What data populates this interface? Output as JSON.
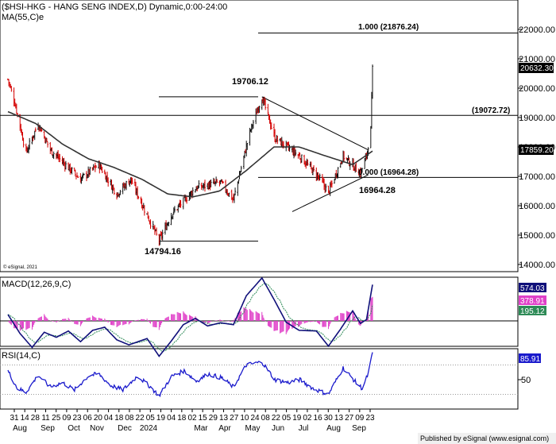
{
  "header": {
    "title": "($HSI-HKG - HANG SENG INDEX,D) Dynamic,0:00-24:00",
    "ma_label": "MA(55,C)e"
  },
  "copyright": "© eSignal, 2021",
  "footer": "Published by eSignal (www.esignal.com)",
  "colors": {
    "up": "#111111",
    "down": "#d40000",
    "ma": "#333333",
    "macd_line": "#10107a",
    "macd_signal": "#2e8b57",
    "hist": "#e040c8",
    "rsi": "#1a1acc",
    "badge_bg": "#000000",
    "badge_blue": "#1a1acc",
    "badge_magenta": "#e040c8",
    "badge_green": "#2e8b57"
  },
  "chart_data": [
    {
      "type": "candlestick",
      "panel": "price",
      "title": "HANG SENG INDEX",
      "ylim": [
        13300,
        22800
      ],
      "y_ticks": [
        14000,
        15000,
        16000,
        17000,
        18000,
        19000,
        20000,
        21000,
        22000
      ],
      "y_tick_labels": [
        "14000.00",
        "15000.00",
        "16000.00",
        "17000.00",
        "18000.00",
        "19000.00",
        "20000.00",
        "21000.00",
        "22000.00"
      ],
      "last_price": "20632.30",
      "ma55_value": "17859.20",
      "key_points": [
        {
          "date": "2023-07-31",
          "value": 20300
        },
        {
          "date": "2023-08-08",
          "value": 19500
        },
        {
          "date": "2023-08-21",
          "value": 17800
        },
        {
          "date": "2023-09-04",
          "value": 18800
        },
        {
          "date": "2023-09-18",
          "value": 17900
        },
        {
          "date": "2023-10-02",
          "value": 17500
        },
        {
          "date": "2023-10-23",
          "value": 16900
        },
        {
          "date": "2023-11-13",
          "value": 17400
        },
        {
          "date": "2023-12-04",
          "value": 16400
        },
        {
          "date": "2023-12-20",
          "value": 16900
        },
        {
          "date": "2024-01-22",
          "value": 14794.16
        },
        {
          "date": "2024-02-05",
          "value": 15700
        },
        {
          "date": "2024-03-04",
          "value": 16600
        },
        {
          "date": "2024-04-02",
          "value": 16800
        },
        {
          "date": "2024-04-17",
          "value": 16200
        },
        {
          "date": "2024-05-06",
          "value": 18500
        },
        {
          "date": "2024-05-20",
          "value": 19706.12
        },
        {
          "date": "2024-06-04",
          "value": 18300
        },
        {
          "date": "2024-07-02",
          "value": 17700
        },
        {
          "date": "2024-07-24",
          "value": 17000
        },
        {
          "date": "2024-08-05",
          "value": 16441
        },
        {
          "date": "2024-08-22",
          "value": 17700
        },
        {
          "date": "2024-09-11",
          "value": 17100
        },
        {
          "date": "2024-09-18",
          "value": 17700
        },
        {
          "date": "2024-09-23",
          "value": 18600
        },
        {
          "date": "2024-09-25",
          "value": 20632.3
        }
      ],
      "ma55_points": [
        {
          "date": "2023-07-31",
          "value": 19200
        },
        {
          "date": "2023-09-01",
          "value": 18800
        },
        {
          "date": "2023-10-02",
          "value": 18100
        },
        {
          "date": "2023-11-01",
          "value": 17600
        },
        {
          "date": "2023-12-01",
          "value": 17300
        },
        {
          "date": "2024-01-02",
          "value": 16900
        },
        {
          "date": "2024-02-01",
          "value": 16400
        },
        {
          "date": "2024-03-01",
          "value": 16300
        },
        {
          "date": "2024-04-01",
          "value": 16500
        },
        {
          "date": "2024-05-02",
          "value": 17200
        },
        {
          "date": "2024-06-03",
          "value": 18000
        },
        {
          "date": "2024-07-02",
          "value": 18000
        },
        {
          "date": "2024-08-01",
          "value": 17700
        },
        {
          "date": "2024-09-02",
          "value": 17400
        },
        {
          "date": "2024-09-25",
          "value": 17859.2
        }
      ],
      "horizontal_levels": [
        {
          "value": 21876.24,
          "label": "1.000 (21876.24)"
        },
        {
          "value": 19072.72,
          "label": "(19072.72)"
        },
        {
          "value": 16964.28,
          "label": "0.000 (16964.28)"
        }
      ],
      "annotations": [
        {
          "text": "19706.12"
        },
        {
          "text": "14794.16"
        },
        {
          "text": "16964.28"
        }
      ],
      "x_tick_labels": [
        "31",
        "14",
        "28",
        "11",
        "25",
        "09",
        "23",
        "06",
        "20",
        "04",
        "18",
        "08",
        "22",
        "05",
        "19",
        "04",
        "18",
        "02",
        "15",
        "29",
        "13",
        "27",
        "10",
        "24",
        "08",
        "22",
        "05",
        "19",
        "02",
        "16",
        "30",
        "13",
        "27",
        "09",
        "23"
      ],
      "x_month_labels": [
        "Aug",
        "Sep",
        "Oct",
        "Nov",
        "Dec",
        "2024",
        "Mar",
        "Apr",
        "May",
        "Jun",
        "Jul",
        "Aug",
        "Sep"
      ]
    },
    {
      "type": "line",
      "panel": "macd",
      "title": "MACD(12,26,9,C)",
      "ylim": [
        -900,
        900
      ],
      "values": {
        "macd": "574.03",
        "signal": "378.91",
        "hist": "195.12"
      },
      "macd_points": [
        {
          "date": "2023-07-31",
          "value": 100
        },
        {
          "date": "2023-08-14",
          "value": -200
        },
        {
          "date": "2023-08-28",
          "value": -420
        },
        {
          "date": "2023-09-11",
          "value": -180
        },
        {
          "date": "2023-09-25",
          "value": -260
        },
        {
          "date": "2023-10-09",
          "value": -160
        },
        {
          "date": "2023-10-23",
          "value": -330
        },
        {
          "date": "2023-11-06",
          "value": -150
        },
        {
          "date": "2023-11-20",
          "value": -100
        },
        {
          "date": "2023-12-04",
          "value": -300
        },
        {
          "date": "2023-12-18",
          "value": -380
        },
        {
          "date": "2024-01-08",
          "value": -280
        },
        {
          "date": "2024-01-22",
          "value": -560
        },
        {
          "date": "2024-02-05",
          "value": -320
        },
        {
          "date": "2024-02-19",
          "value": -60
        },
        {
          "date": "2024-03-04",
          "value": 40
        },
        {
          "date": "2024-03-18",
          "value": -80
        },
        {
          "date": "2024-04-02",
          "value": -30
        },
        {
          "date": "2024-04-17",
          "value": -60
        },
        {
          "date": "2024-05-02",
          "value": 400
        },
        {
          "date": "2024-05-20",
          "value": 680
        },
        {
          "date": "2024-06-03",
          "value": 340
        },
        {
          "date": "2024-06-17",
          "value": -20
        },
        {
          "date": "2024-07-02",
          "value": -150
        },
        {
          "date": "2024-07-22",
          "value": -160
        },
        {
          "date": "2024-08-05",
          "value": -400
        },
        {
          "date": "2024-08-19",
          "value": -130
        },
        {
          "date": "2024-09-02",
          "value": 160
        },
        {
          "date": "2024-09-11",
          "value": -40
        },
        {
          "date": "2024-09-18",
          "value": 20
        },
        {
          "date": "2024-09-25",
          "value": 574.03
        }
      ]
    },
    {
      "type": "line",
      "panel": "rsi",
      "title": "RSI(14,C)",
      "ylim": [
        15,
        95
      ],
      "y_ticks": [
        50
      ],
      "value": "85.91",
      "points": [
        {
          "date": "2023-07-31",
          "value": 62
        },
        {
          "date": "2023-08-11",
          "value": 38
        },
        {
          "date": "2023-08-21",
          "value": 33
        },
        {
          "date": "2023-09-04",
          "value": 56
        },
        {
          "date": "2023-09-18",
          "value": 40
        },
        {
          "date": "2023-10-02",
          "value": 46
        },
        {
          "date": "2023-10-16",
          "value": 36
        },
        {
          "date": "2023-11-01",
          "value": 55
        },
        {
          "date": "2023-11-13",
          "value": 58
        },
        {
          "date": "2023-11-27",
          "value": 42
        },
        {
          "date": "2023-12-11",
          "value": 36
        },
        {
          "date": "2023-12-28",
          "value": 55
        },
        {
          "date": "2024-01-12",
          "value": 40
        },
        {
          "date": "2024-01-22",
          "value": 28
        },
        {
          "date": "2024-02-05",
          "value": 54
        },
        {
          "date": "2024-02-20",
          "value": 62
        },
        {
          "date": "2024-03-05",
          "value": 48
        },
        {
          "date": "2024-03-19",
          "value": 58
        },
        {
          "date": "2024-04-04",
          "value": 52
        },
        {
          "date": "2024-04-17",
          "value": 40
        },
        {
          "date": "2024-05-02",
          "value": 70
        },
        {
          "date": "2024-05-20",
          "value": 74
        },
        {
          "date": "2024-06-04",
          "value": 50
        },
        {
          "date": "2024-06-19",
          "value": 46
        },
        {
          "date": "2024-07-03",
          "value": 50
        },
        {
          "date": "2024-07-18",
          "value": 38
        },
        {
          "date": "2024-08-05",
          "value": 30
        },
        {
          "date": "2024-08-22",
          "value": 66
        },
        {
          "date": "2024-09-06",
          "value": 46
        },
        {
          "date": "2024-09-13",
          "value": 38
        },
        {
          "date": "2024-09-20",
          "value": 58
        },
        {
          "date": "2024-09-25",
          "value": 85.91
        }
      ]
    }
  ]
}
